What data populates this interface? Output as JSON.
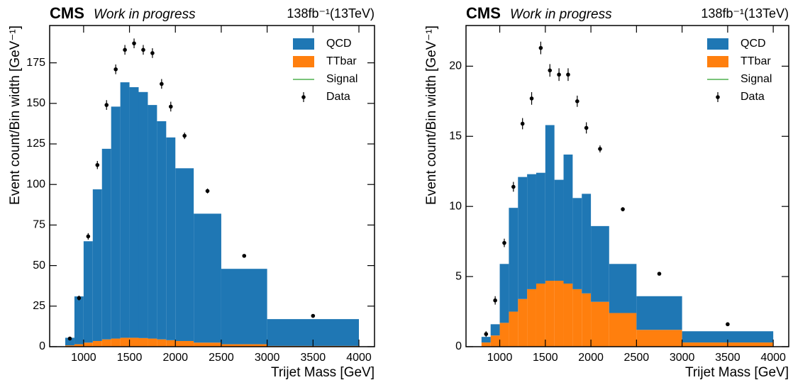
{
  "chart_data": [
    {
      "type": "histogram",
      "experiment": "CMS",
      "status": "Work in progress",
      "lumi": "138fb⁻¹(13TeV)",
      "xlabel": "Trijet Mass [GeV]",
      "ylabel": "Event count/Bin width [GeV⁻¹]",
      "bins": [
        800,
        900,
        1000,
        1100,
        1200,
        1300,
        1400,
        1500,
        1600,
        1700,
        1800,
        1900,
        2000,
        2200,
        2500,
        3000,
        4000
      ],
      "series": [
        {
          "name": "QCD",
          "color": "#1f77b4",
          "values": [
            4.7,
            29.5,
            62.5,
            93.5,
            117.5,
            143,
            157.5,
            154.5,
            151.7,
            144,
            134.5,
            125,
            106.5,
            79.5,
            46.5,
            16.5
          ]
        },
        {
          "name": "TTbar",
          "color": "#ff7f0e",
          "values": [
            0.8,
            1.5,
            2.5,
            3.5,
            4.5,
            5,
            5.5,
            5.5,
            5.3,
            5,
            4.5,
            4,
            3.5,
            2.5,
            1.5,
            0.5
          ]
        },
        {
          "name": "Signal",
          "color": "#2ca02c"
        }
      ],
      "points": {
        "name": "Data",
        "color": "#000000",
        "x": [
          850,
          950,
          1050,
          1150,
          1250,
          1350,
          1450,
          1550,
          1650,
          1750,
          1850,
          1950,
          2100,
          2350,
          2750,
          3500
        ],
        "values": [
          5,
          30,
          68,
          112,
          149,
          171,
          183,
          187,
          183,
          181,
          162,
          148,
          130,
          96,
          56,
          19
        ],
        "errors": [
          1,
          1.5,
          2,
          2.5,
          3,
          3,
          3,
          3,
          3,
          3,
          3,
          3,
          2,
          1.5,
          1,
          0.5
        ]
      },
      "xlim": [
        630,
        4170
      ],
      "ylim": [
        0,
        198
      ],
      "xticks": [
        1000,
        1500,
        2000,
        2500,
        3000,
        3500,
        4000
      ],
      "yticks": [
        0,
        25,
        50,
        75,
        100,
        125,
        150,
        175
      ]
    },
    {
      "type": "histogram",
      "experiment": "CMS",
      "status": "Work in progress",
      "lumi": "138fb⁻¹(13TeV)",
      "xlabel": "Trijet Mass [GeV]",
      "ylabel": "Event count/Bin width [GeV⁻¹]",
      "bins": [
        800,
        900,
        1000,
        1100,
        1200,
        1300,
        1400,
        1500,
        1600,
        1700,
        1800,
        1900,
        2000,
        2200,
        2500,
        3000,
        4000
      ],
      "series": [
        {
          "name": "QCD",
          "color": "#1f77b4",
          "values": [
            0.4,
            0.8,
            4.2,
            7.4,
            8.7,
            8.2,
            7.9,
            11.1,
            7.2,
            9.2,
            6.5,
            7.1,
            5.4,
            3.5,
            2.4,
            0.8
          ]
        },
        {
          "name": "TTbar",
          "color": "#ff7f0e",
          "values": [
            0.3,
            0.8,
            1.7,
            2.5,
            3.4,
            4.1,
            4.5,
            4.7,
            4.7,
            4.5,
            4.1,
            3.8,
            3.2,
            2.4,
            1.2,
            0.3
          ]
        },
        {
          "name": "Signal",
          "color": "#2ca02c"
        }
      ],
      "points": {
        "name": "Data",
        "color": "#000000",
        "x": [
          850,
          950,
          1050,
          1150,
          1250,
          1350,
          1450,
          1550,
          1650,
          1750,
          1850,
          1950,
          2100,
          2350,
          2750,
          3500
        ],
        "values": [
          0.9,
          3.3,
          7.4,
          11.4,
          15.9,
          17.7,
          21.3,
          19.7,
          19.4,
          19.4,
          17.5,
          15.6,
          14.1,
          9.8,
          5.2,
          1.6
        ],
        "errors": [
          0.2,
          0.3,
          0.3,
          0.35,
          0.4,
          0.45,
          0.45,
          0.45,
          0.45,
          0.45,
          0.4,
          0.4,
          0.25,
          0.15,
          0.1,
          0.05
        ]
      },
      "xlim": [
        630,
        4170
      ],
      "ylim": [
        0,
        22.9
      ],
      "xticks": [
        1000,
        1500,
        2000,
        2500,
        3000,
        3500,
        4000
      ],
      "yticks": [
        0,
        5,
        10,
        15,
        20
      ]
    }
  ]
}
